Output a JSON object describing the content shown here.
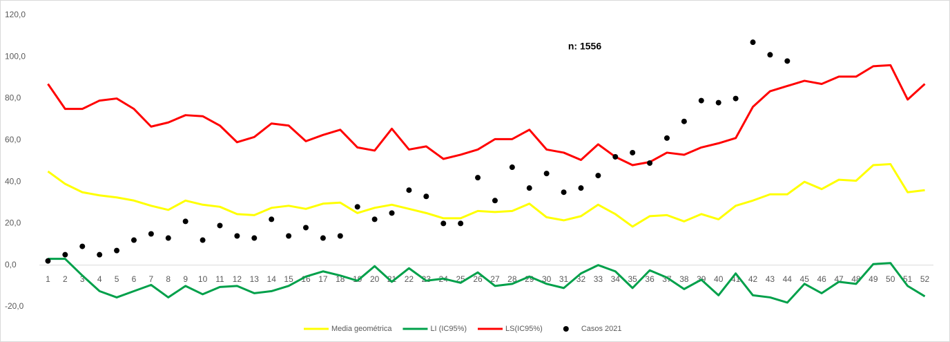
{
  "chart_data": {
    "type": "line",
    "annotation": "n: 1556",
    "categories": [
      "1",
      "2",
      "3",
      "4",
      "5",
      "6",
      "7",
      "8",
      "9",
      "10",
      "11",
      "12",
      "13",
      "14",
      "15",
      "16",
      "17",
      "18",
      "19",
      "20",
      "21",
      "22",
      "23",
      "24",
      "25",
      "26",
      "27",
      "28",
      "29",
      "30",
      "31",
      "32",
      "33",
      "34",
      "35",
      "36",
      "37",
      "38",
      "39",
      "40",
      "41",
      "42",
      "43",
      "44",
      "45",
      "46",
      "47",
      "48",
      "49",
      "50",
      "51",
      "52"
    ],
    "series": [
      {
        "name": "Media geométrica",
        "type": "line",
        "color": "#ffff00",
        "values": [
          45,
          39,
          35,
          33.5,
          32.5,
          31,
          28.5,
          26.5,
          31,
          29,
          28,
          24.5,
          24,
          27.5,
          28.5,
          27,
          29.5,
          30,
          25,
          27.5,
          29,
          27,
          25,
          22.5,
          22.5,
          26,
          25.5,
          26,
          29.5,
          23,
          21.5,
          23.5,
          29,
          24.5,
          18.5,
          23.5,
          24,
          21,
          24.5,
          22,
          28.5,
          31,
          34,
          34,
          40,
          36.5,
          41,
          40.5,
          48,
          48.5,
          35,
          36
        ]
      },
      {
        "name": "LI (IC95%)",
        "type": "line",
        "color": "#00a04a",
        "values": [
          3,
          3,
          -5,
          -12.5,
          -15.5,
          -12.5,
          -9.5,
          -15.5,
          -10,
          -14,
          -10.5,
          -10,
          -13.5,
          -12.5,
          -10,
          -5.5,
          -3,
          -5,
          -7.5,
          -0.5,
          -8,
          -1.5,
          -7.5,
          -6.5,
          -8.5,
          -3.5,
          -10,
          -9,
          -5.5,
          -9,
          -11,
          -4,
          0,
          -3,
          -11,
          -2.5,
          -6,
          -11.5,
          -7,
          -14.5,
          -4,
          -14.5,
          -15.5,
          -18,
          -9,
          -13.5,
          -8,
          -9,
          0.5,
          1,
          -10,
          -15
        ]
      },
      {
        "name": "LS(IC95%)",
        "type": "line",
        "color": "#ff0000",
        "values": [
          87,
          75,
          75,
          79,
          80,
          75,
          66.5,
          68.5,
          72,
          71.5,
          67,
          59,
          61.5,
          68,
          67,
          59.5,
          62.5,
          65,
          56.5,
          55,
          65.5,
          55.5,
          57,
          51,
          53,
          55.5,
          60.5,
          60.5,
          65,
          55.5,
          54,
          50.5,
          58,
          52,
          48,
          49.5,
          54,
          53,
          56.5,
          58.5,
          61,
          76,
          83.5,
          86,
          88.5,
          87,
          90.5,
          90.5,
          95.5,
          96,
          79.5,
          87
        ]
      },
      {
        "name": "Casos 2021",
        "type": "scatter",
        "color": "#000000",
        "values": [
          2,
          5,
          9,
          5,
          7,
          12,
          15,
          13,
          21,
          12,
          19,
          14,
          13,
          22,
          14,
          18,
          13,
          14,
          28,
          22,
          25,
          36,
          33,
          20,
          20,
          42,
          31,
          47,
          37,
          44,
          35,
          37,
          43,
          52,
          54,
          49,
          61,
          69,
          79,
          78,
          80,
          107,
          101,
          98,
          null,
          null,
          null,
          null,
          null,
          null,
          null,
          null
        ]
      }
    ],
    "ylim": [
      -20,
      120
    ],
    "yticks": [
      {
        "value": -20,
        "label": "-20,0"
      },
      {
        "value": 0,
        "label": "0,0"
      },
      {
        "value": 20,
        "label": "20,0"
      },
      {
        "value": 40,
        "label": "40,0"
      },
      {
        "value": 60,
        "label": "60,0"
      },
      {
        "value": 80,
        "label": "80,0"
      },
      {
        "value": 100,
        "label": "100,0"
      },
      {
        "value": 120,
        "label": "120,0"
      }
    ],
    "grid": false,
    "legend": "bottom"
  }
}
